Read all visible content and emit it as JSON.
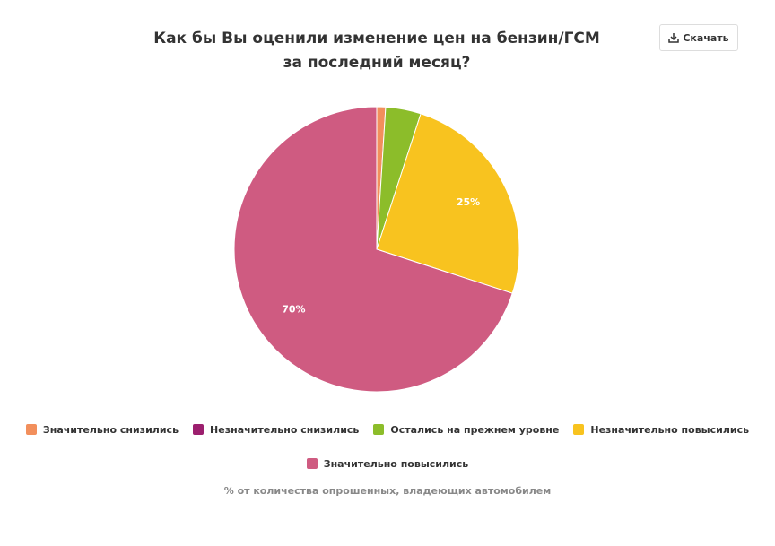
{
  "chart_data": {
    "type": "pie",
    "title": "Как бы Вы оценили изменение цен на бензин/ГСМ за последний месяц?",
    "button": "Скачать",
    "categories": [
      "Значительно снизились",
      "Незначительно снизились",
      "Остались на прежнем уровне",
      "Незначительно повысились",
      "Значительно повысились"
    ],
    "values": [
      1,
      0,
      4,
      25,
      70
    ],
    "value_labels": [
      null,
      null,
      null,
      "25%",
      "70%"
    ],
    "colors": [
      "#f28f5c",
      "#9c1f6e",
      "#8cbd2a",
      "#f8c31f",
      "#cf5b81"
    ],
    "caption": "% от количества опрошенных, владеющих автомобилем"
  }
}
